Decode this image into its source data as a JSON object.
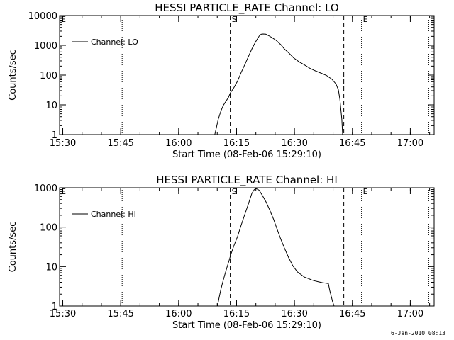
{
  "chart_data": [
    {
      "type": "line",
      "title": "HESSI PARTICLE_RATE Channel: LO",
      "xlabel": "Start Time (08-Feb-06 15:29:10)",
      "ylabel": "Counts/sec",
      "x_unit": "minutes after 15:29:10",
      "xlim": [
        0,
        97
      ],
      "ylim": [
        1,
        10000
      ],
      "y_scale": "log",
      "x_ticks": [
        {
          "x": 0.83,
          "label": "15:30"
        },
        {
          "x": 15.83,
          "label": "15:45"
        },
        {
          "x": 30.83,
          "label": "16:00"
        },
        {
          "x": 45.83,
          "label": "16:15"
        },
        {
          "x": 60.83,
          "label": "16:30"
        },
        {
          "x": 75.83,
          "label": "16:45"
        },
        {
          "x": 90.83,
          "label": "17:00"
        }
      ],
      "y_ticks": [
        {
          "y": 1,
          "label": "1"
        },
        {
          "y": 10,
          "label": "10"
        },
        {
          "y": 100,
          "label": "100"
        },
        {
          "y": 1000,
          "label": "1000"
        },
        {
          "y": 10000,
          "label": "10000"
        }
      ],
      "legend": {
        "entries": [
          "Channel: LO"
        ],
        "placement": "top-left"
      },
      "grid": false,
      "markers": [
        {
          "x": 0,
          "style": "dotted",
          "label": "E"
        },
        {
          "x": 16.2,
          "style": "dotted",
          "label": ""
        },
        {
          "x": 44.2,
          "style": "dashed",
          "label": "S"
        },
        {
          "x": 73.6,
          "style": "dashed",
          "label": ""
        },
        {
          "x": 78.2,
          "style": "dotted",
          "label": "E"
        },
        {
          "x": 95.6,
          "style": "dotted",
          "label": ""
        }
      ],
      "series": [
        {
          "name": "Channel: LO",
          "x": [
            40.2,
            40.6,
            41.1,
            41.8,
            42.4,
            43.1,
            43.7,
            44.2,
            45.1,
            46.1,
            47.0,
            48.0,
            48.9,
            49.8,
            50.8,
            51.7,
            52.2,
            52.7,
            53.4,
            54.2,
            55.2,
            56.1,
            57.3,
            58.2,
            59.4,
            60.6,
            62.0,
            63.4,
            64.8,
            66.2,
            67.6,
            69.1,
            70.5,
            71.6,
            72.2,
            72.6,
            73.1,
            73.3
          ],
          "y": [
            1,
            1.7,
            3.3,
            6.3,
            9.6,
            13.3,
            17.5,
            24.8,
            37,
            63,
            120,
            230,
            420,
            760,
            1330,
            2050,
            2350,
            2400,
            2360,
            2100,
            1750,
            1460,
            1050,
            760,
            550,
            380,
            280,
            220,
            170,
            140,
            118,
            98,
            73,
            50,
            32,
            15,
            3.2,
            1
          ]
        }
      ]
    },
    {
      "type": "line",
      "title": "HESSI PARTICLE_RATE Channel: HI",
      "xlabel": "Start Time (08-Feb-06 15:29:10)",
      "ylabel": "Counts/sec",
      "x_unit": "minutes after 15:29:10",
      "xlim": [
        0,
        97
      ],
      "ylim": [
        1,
        1000
      ],
      "y_scale": "log",
      "x_ticks": [
        {
          "x": 0.83,
          "label": "15:30"
        },
        {
          "x": 15.83,
          "label": "15:45"
        },
        {
          "x": 30.83,
          "label": "16:00"
        },
        {
          "x": 45.83,
          "label": "16:15"
        },
        {
          "x": 60.83,
          "label": "16:30"
        },
        {
          "x": 75.83,
          "label": "16:45"
        },
        {
          "x": 90.83,
          "label": "17:00"
        }
      ],
      "y_ticks": [
        {
          "y": 1,
          "label": "1"
        },
        {
          "y": 10,
          "label": "10"
        },
        {
          "y": 100,
          "label": "100"
        },
        {
          "y": 1000,
          "label": "1000"
        }
      ],
      "legend": {
        "entries": [
          "Channel: HI"
        ],
        "placement": "top-left"
      },
      "grid": false,
      "markers": [
        {
          "x": 0,
          "style": "dotted",
          "label": "E"
        },
        {
          "x": 16.2,
          "style": "dotted",
          "label": ""
        },
        {
          "x": 44.2,
          "style": "dashed",
          "label": "S"
        },
        {
          "x": 73.6,
          "style": "dashed",
          "label": ""
        },
        {
          "x": 78.2,
          "style": "dotted",
          "label": "E"
        },
        {
          "x": 95.6,
          "style": "dotted",
          "label": ""
        }
      ],
      "series": [
        {
          "name": "Channel: HI",
          "x": [
            40.9,
            41.3,
            41.8,
            42.3,
            42.8,
            43.3,
            43.8,
            44.4,
            45.1,
            46.1,
            47.0,
            47.9,
            48.9,
            49.8,
            50.4,
            50.8,
            51.2,
            51.7,
            52.6,
            53.5,
            54.5,
            55.4,
            56.3,
            57.2,
            58.2,
            59.3,
            60.4,
            61.6,
            62.5,
            63.4,
            64.4,
            65.2,
            66.2,
            67.1,
            68.1,
            69.0,
            69.6,
            70.0,
            70.4,
            70.7,
            71.1
          ],
          "y": [
            1,
            1.6,
            2.7,
            4.2,
            6.3,
            9.2,
            13.2,
            21,
            33,
            58,
            110,
            200,
            390,
            720,
            890,
            950,
            920,
            860,
            620,
            430,
            260,
            160,
            90,
            52,
            30,
            17,
            10.5,
            7.3,
            6.3,
            5.4,
            5.0,
            4.6,
            4.3,
            4.1,
            3.9,
            3.8,
            3.7,
            2.4,
            1.7,
            1.3,
            1
          ]
        }
      ]
    }
  ],
  "footer": {
    "timestamp": "6-Jan-2010 08:13"
  }
}
